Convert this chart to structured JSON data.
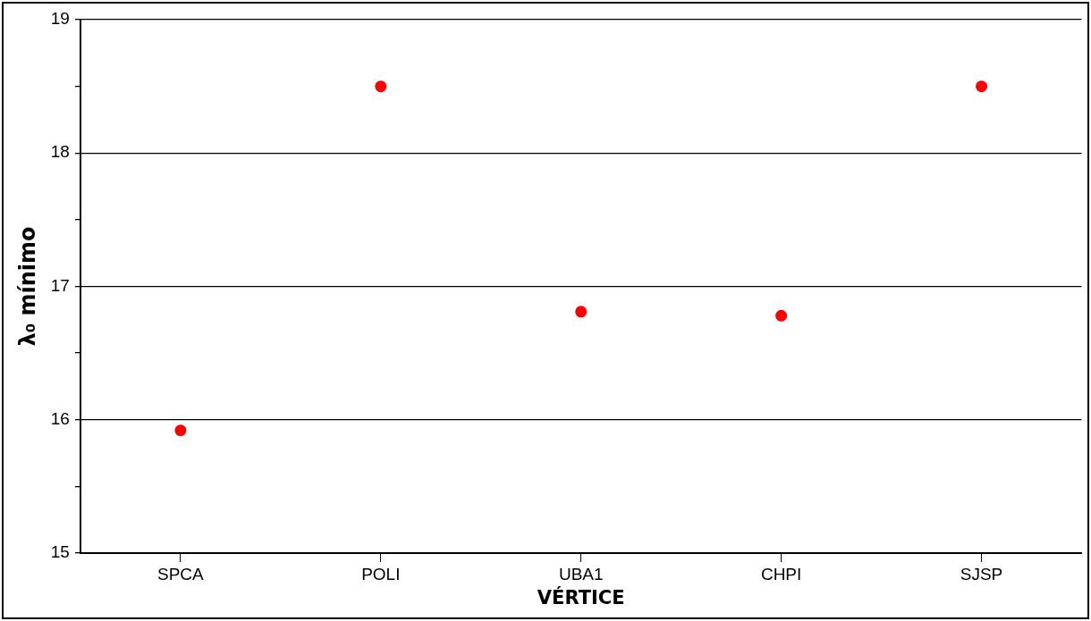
{
  "chart_data": {
    "type": "scatter",
    "xlabel": "VÉRTICE",
    "ylabel": "λ₀ mínimo",
    "categories": [
      "SPCA",
      "POLI",
      "UBA1",
      "CHPI",
      "SJSP"
    ],
    "series": [
      {
        "color": "#ff0000",
        "values": [
          15.92,
          18.5,
          16.81,
          16.78,
          18.5
        ]
      }
    ],
    "ylim": [
      15,
      19
    ],
    "yticks": [
      15,
      {
        "value": 15.5,
        "label": null
      },
      16,
      {
        "value": 16.5,
        "label": null
      },
      17,
      {
        "value": 17.5,
        "label": null
      },
      18,
      {
        "value": 18.5,
        "label": null
      },
      19
    ],
    "grid": "y",
    "legend": false,
    "marker": "circle"
  }
}
